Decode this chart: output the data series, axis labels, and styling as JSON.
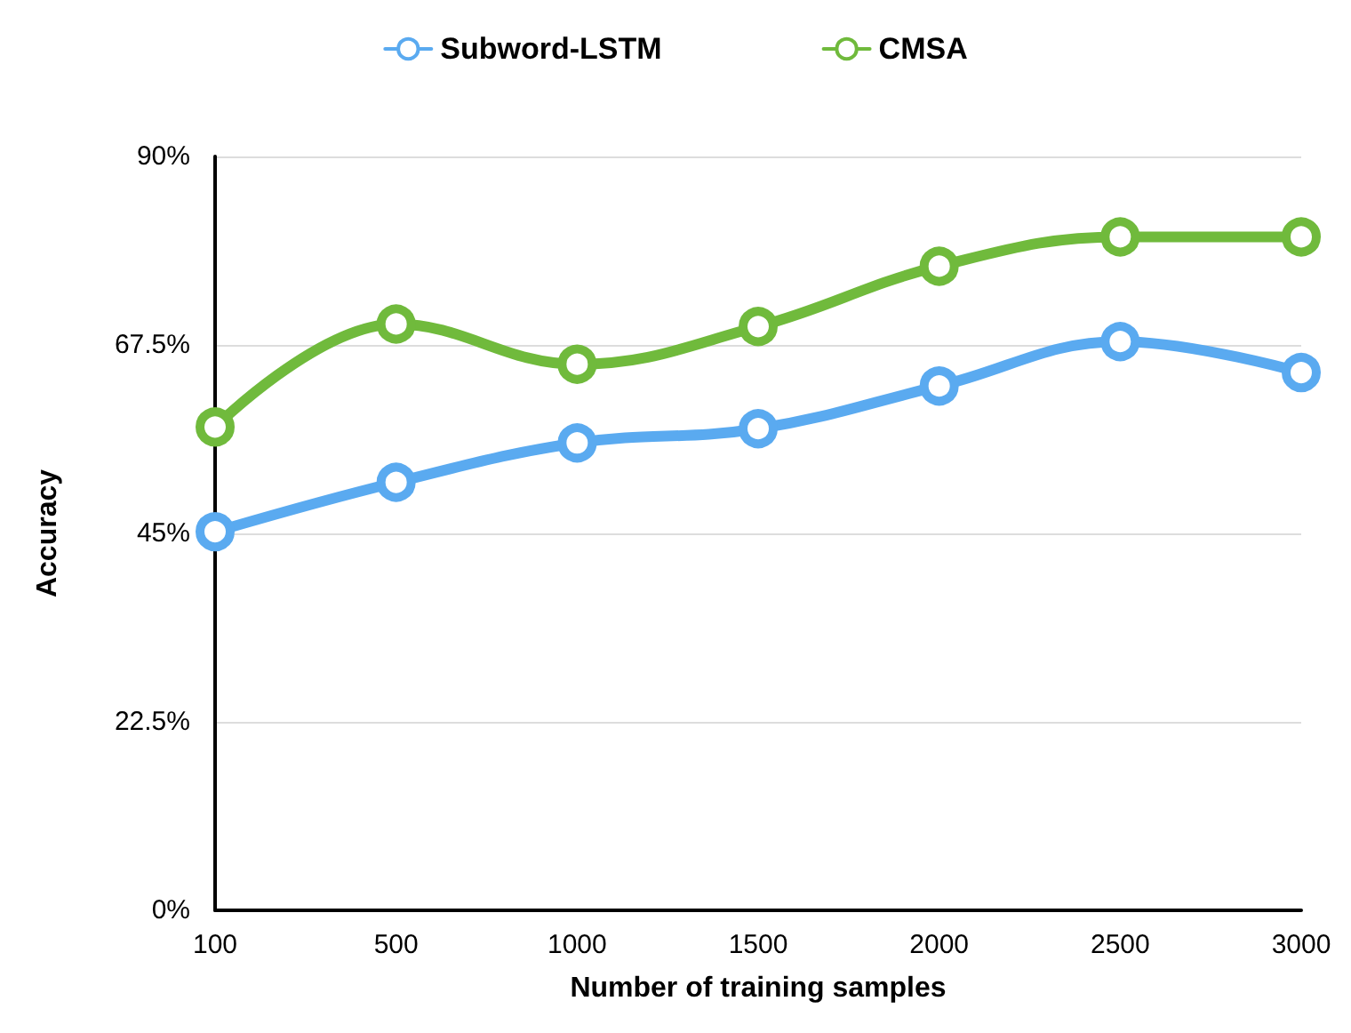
{
  "chart_data": {
    "type": "line",
    "xlabel": "Number of training samples",
    "ylabel": "Accuracy",
    "categories": [
      "100",
      "500",
      "1000",
      "1500",
      "2000",
      "2500",
      "3000"
    ],
    "series": [
      {
        "name": "Subword-LSTM",
        "color": "#5aaaf0",
        "values": [
          45.2,
          51.1,
          55.8,
          57.5,
          62.6,
          67.9,
          64.2
        ]
      },
      {
        "name": "CMSA",
        "color": "#70ba3c",
        "values": [
          57.7,
          70.0,
          65.2,
          69.7,
          76.9,
          80.4,
          80.4
        ]
      }
    ],
    "ylim": [
      0,
      90
    ],
    "yticks": [
      {
        "value": 0,
        "label": "0%"
      },
      {
        "value": 22.5,
        "label": "22.5%"
      },
      {
        "value": 45,
        "label": "45%"
      },
      {
        "value": 67.5,
        "label": "67.5%"
      },
      {
        "value": 90,
        "label": "90%"
      }
    ],
    "grid": "y",
    "legend": "top",
    "marker": "circle",
    "line_style": "solid"
  }
}
